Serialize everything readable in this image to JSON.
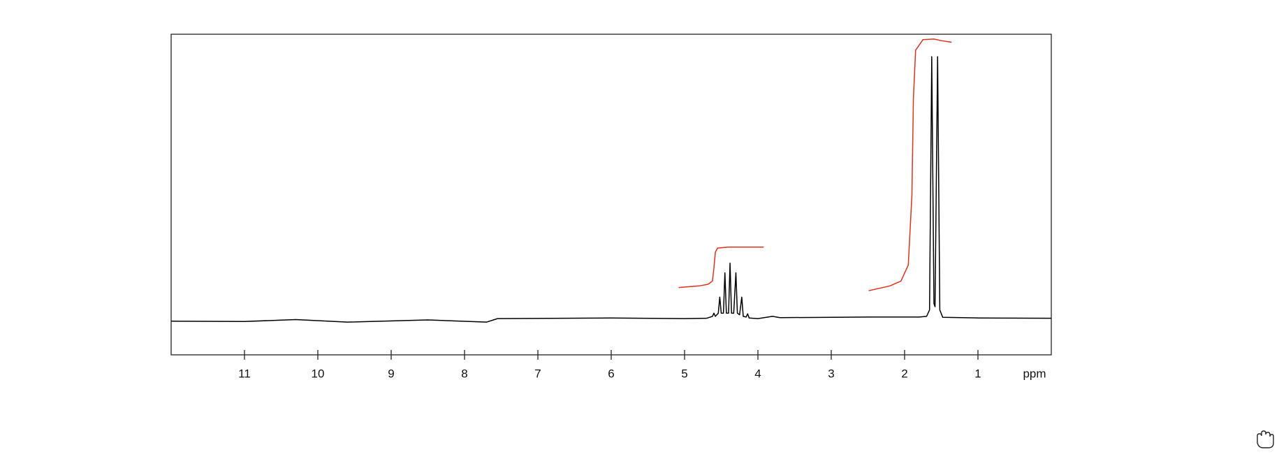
{
  "chart_data": {
    "type": "line",
    "x_label": "ppm",
    "xlim": [
      12,
      0
    ],
    "xticks": [
      11,
      10,
      9,
      8,
      7,
      6,
      5,
      4,
      3,
      2,
      1
    ],
    "ylim": [
      0,
      100
    ],
    "grid": false,
    "series": [
      {
        "color": "#000000",
        "x": [
          12.0,
          11.0,
          10.3,
          9.6,
          8.5,
          7.7,
          7.55,
          6.0,
          5.0,
          4.7,
          4.62,
          4.6,
          4.58,
          4.54,
          4.52,
          4.5,
          4.47,
          4.45,
          4.43,
          4.4,
          4.38,
          4.36,
          4.33,
          4.3,
          4.28,
          4.25,
          4.22,
          4.2,
          4.16,
          4.14,
          4.12,
          4.0,
          3.8,
          3.7,
          2.5,
          1.8,
          1.7,
          1.66,
          1.63,
          1.6,
          1.585,
          1.55,
          1.52,
          1.48,
          1.0,
          0.0
        ],
        "values": [
          10.5,
          10.4,
          11,
          10.2,
          10.9,
          10.2,
          11.3,
          11.5,
          11.3,
          11.4,
          12,
          13,
          12,
          13,
          18,
          13,
          13,
          25.6,
          13,
          13,
          28.6,
          13,
          13,
          25.6,
          13,
          12.5,
          18,
          12,
          11.8,
          12.8,
          11.5,
          11.3,
          12,
          11.6,
          11.8,
          11.8,
          12,
          14,
          93,
          16,
          15,
          93,
          14,
          11.7,
          11.5,
          11.4
        ]
      },
      {
        "color": "#e0301e",
        "x": [
          5.08,
          4.8,
          4.68,
          4.62,
          4.6,
          4.58,
          4.55,
          4.4,
          3.92
        ],
        "values": [
          21,
          21.5,
          22,
          23,
          27,
          32,
          33.3,
          33.6,
          33.6
        ]
      },
      {
        "color": "#e0301e",
        "x": [
          2.49,
          2.2,
          2.05,
          1.95,
          1.9,
          1.88,
          1.85,
          1.75,
          1.6,
          1.5,
          1.36
        ],
        "values": [
          20,
          21.5,
          23,
          28,
          50,
          80,
          95,
          98.3,
          98.5,
          98,
          97.5
        ]
      }
    ]
  }
}
